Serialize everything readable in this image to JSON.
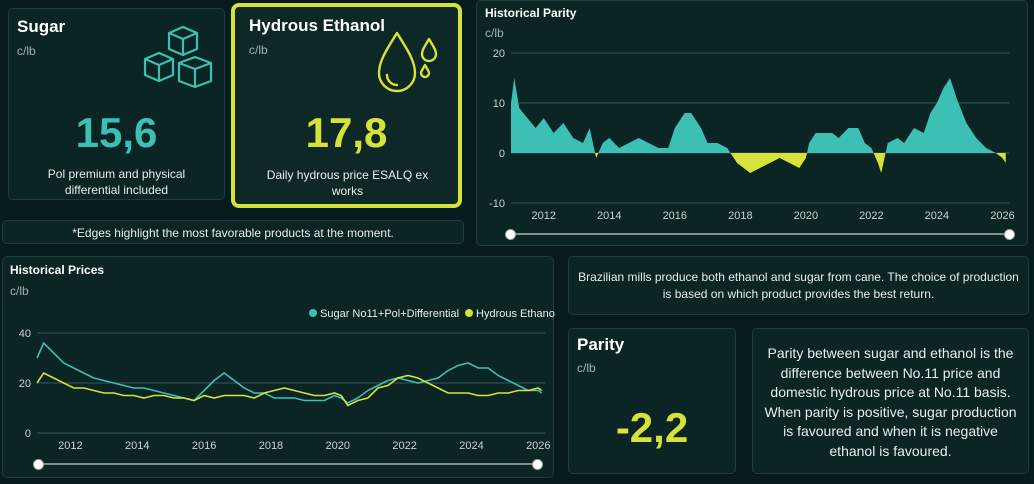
{
  "sugar_card": {
    "title": "Sugar",
    "unit": "c/lb",
    "value": "15,6",
    "description": "Pol premium and physical differential included",
    "icon": "sugar-cubes-icon",
    "color": "#3cc0b4"
  },
  "ethanol_card": {
    "title": "Hydrous Ethanol",
    "unit": "c/lb",
    "value": "17,8",
    "description": "Daily hydrous price ESALQ ex works",
    "icon": "droplets-icon",
    "color": "#d6e23a",
    "highlight_border": "#d6e23a"
  },
  "note": "*Edges highlight the most favorable products at the moment.",
  "info_text": "Brazilian mills produce both ethanol and sugar from cane. The choice of production is based on which product provides the best return.",
  "parity_card": {
    "title": "Parity",
    "unit": "c/lb",
    "value": "-2,2",
    "color": "#d6e23a"
  },
  "parity_explanation": "Parity between sugar and ethanol is the difference between No.11 price and domestic hydrous price at No.11 basis. When parity is positive, sugar production is favoured and when it is negative ethanol is favoured.",
  "parity_chart": {
    "title": "Historical Parity",
    "unit": "c/lb"
  },
  "prices_chart": {
    "title": "Historical Prices",
    "unit": "c/lb"
  },
  "chart_data": [
    {
      "type": "area",
      "title": "Historical Parity",
      "ylabel": "c/lb",
      "ylim": [
        -10,
        20
      ],
      "yticks": [
        -10,
        0,
        10,
        20
      ],
      "xlim": [
        2011,
        2026.2
      ],
      "xticks": [
        2012,
        2014,
        2016,
        2018,
        2020,
        2022,
        2024,
        2026
      ],
      "positive_color": "#3cc0b4",
      "negative_color": "#d6e23a",
      "grid": true,
      "x": [
        2011.0,
        2011.1,
        2011.25,
        2011.5,
        2011.75,
        2012.0,
        2012.3,
        2012.6,
        2012.9,
        2013.2,
        2013.4,
        2013.6,
        2013.8,
        2014.0,
        2014.3,
        2014.6,
        2014.9,
        2015.2,
        2015.5,
        2015.8,
        2016.0,
        2016.3,
        2016.5,
        2016.8,
        2017.0,
        2017.3,
        2017.6,
        2017.9,
        2018.1,
        2018.3,
        2018.6,
        2018.9,
        2019.2,
        2019.5,
        2019.8,
        2020.0,
        2020.1,
        2020.3,
        2020.5,
        2020.8,
        2021.0,
        2021.3,
        2021.6,
        2021.8,
        2022.0,
        2022.2,
        2022.3,
        2022.5,
        2022.8,
        2023.0,
        2023.3,
        2023.6,
        2023.8,
        2024.0,
        2024.2,
        2024.4,
        2024.6,
        2024.9,
        2025.2,
        2025.5,
        2025.8,
        2026.0,
        2026.1
      ],
      "y": [
        10,
        15,
        9,
        7,
        5,
        7,
        4,
        6,
        3,
        2,
        5,
        -1,
        2,
        3,
        1,
        2,
        3,
        2,
        1,
        1,
        5,
        8,
        8,
        5,
        2,
        2,
        1,
        -2,
        -3,
        -4,
        -3,
        -2,
        -1,
        -2,
        -3,
        -1,
        2,
        4,
        4,
        4,
        3,
        5,
        5,
        2,
        1,
        -2,
        -4,
        2,
        3,
        2,
        5,
        4,
        8,
        10,
        13,
        15,
        11,
        6,
        3,
        1,
        0,
        -1,
        -2
      ]
    },
    {
      "type": "line",
      "title": "Historical Prices",
      "ylabel": "c/lb",
      "ylim": [
        0,
        40
      ],
      "yticks": [
        0,
        20,
        40
      ],
      "xlim": [
        2011,
        2026.2
      ],
      "xticks": [
        2012,
        2014,
        2016,
        2018,
        2020,
        2022,
        2024,
        2026
      ],
      "legend": "top-right",
      "grid": true,
      "x": [
        2011.0,
        2011.2,
        2011.5,
        2011.8,
        2012.1,
        2012.4,
        2012.7,
        2013.0,
        2013.3,
        2013.6,
        2013.9,
        2014.2,
        2014.5,
        2014.8,
        2015.1,
        2015.4,
        2015.7,
        2016.0,
        2016.3,
        2016.6,
        2016.9,
        2017.2,
        2017.5,
        2017.8,
        2018.1,
        2018.4,
        2018.7,
        2019.0,
        2019.3,
        2019.6,
        2019.9,
        2020.1,
        2020.3,
        2020.6,
        2020.9,
        2021.2,
        2021.5,
        2021.8,
        2022.1,
        2022.4,
        2022.7,
        2023.0,
        2023.3,
        2023.6,
        2023.9,
        2024.2,
        2024.5,
        2024.8,
        2025.1,
        2025.4,
        2025.7,
        2026.0,
        2026.1
      ],
      "series": [
        {
          "name": "Sugar No11+Pol+Differential",
          "color": "#3cc0b4",
          "values": [
            30,
            36,
            32,
            28,
            26,
            24,
            22,
            21,
            20,
            19,
            18,
            18,
            17,
            16,
            15,
            14,
            13,
            17,
            21,
            24,
            21,
            18,
            16,
            16,
            14,
            14,
            14,
            13,
            13,
            13,
            15,
            14,
            12,
            14,
            17,
            19,
            21,
            22,
            21,
            20,
            21,
            22,
            25,
            27,
            28,
            26,
            26,
            23,
            21,
            19,
            17,
            17,
            16
          ]
        },
        {
          "name": "Hydrous Ethanol",
          "color": "#d6e23a",
          "values": [
            20,
            24,
            22,
            20,
            18,
            18,
            17,
            16,
            16,
            15,
            15,
            14,
            15,
            15,
            14,
            14,
            13,
            15,
            14,
            15,
            15,
            15,
            14,
            16,
            17,
            18,
            17,
            16,
            15,
            15,
            16,
            15,
            11,
            13,
            14,
            18,
            19,
            22,
            23,
            22,
            20,
            18,
            16,
            16,
            16,
            15,
            15,
            16,
            16,
            17,
            17,
            18,
            17
          ]
        }
      ]
    }
  ]
}
